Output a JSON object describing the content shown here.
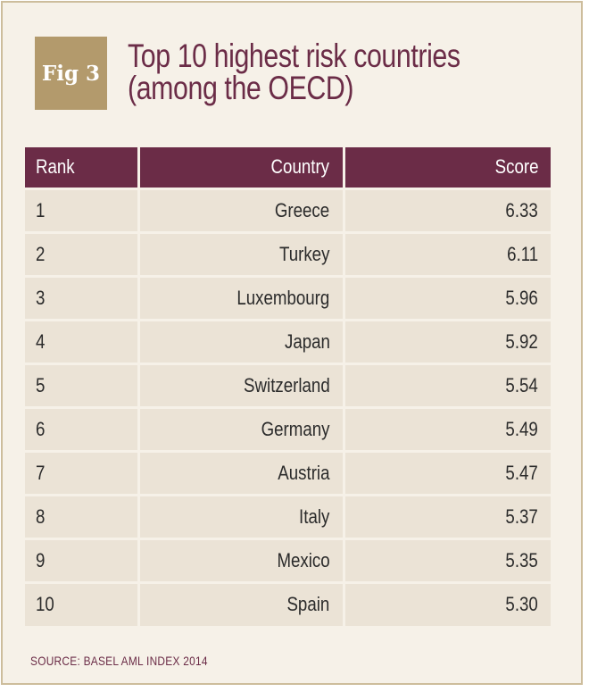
{
  "figure": {
    "badge": "Fig 3",
    "title_line1": "Top 10 highest risk countries",
    "title_line2": "(among the OECD)"
  },
  "table": {
    "headers": [
      "Rank",
      "Country",
      "Score"
    ],
    "rows": [
      {
        "rank": "1",
        "country": "Greece",
        "score": "6.33"
      },
      {
        "rank": "2",
        "country": "Turkey",
        "score": "6.11"
      },
      {
        "rank": "3",
        "country": "Luxembourg",
        "score": "5.96"
      },
      {
        "rank": "4",
        "country": "Japan",
        "score": "5.92"
      },
      {
        "rank": "5",
        "country": "Switzerland",
        "score": "5.54"
      },
      {
        "rank": "6",
        "country": "Germany",
        "score": "5.49"
      },
      {
        "rank": "7",
        "country": "Austria",
        "score": "5.47"
      },
      {
        "rank": "8",
        "country": "Italy",
        "score": "5.37"
      },
      {
        "rank": "9",
        "country": "Mexico",
        "score": "5.35"
      },
      {
        "rank": "10",
        "country": "Spain",
        "score": "5.30"
      }
    ]
  },
  "source": "SOURCE: BASEL AML INDEX 2014",
  "colors": {
    "title": "#6b2c47",
    "header_background": "#6b2c47",
    "badge_background": "#b39a6c",
    "row_background": "#ebe3d6",
    "panel_background": "#f6f1e8",
    "frame_border": "#cdbd9c"
  }
}
